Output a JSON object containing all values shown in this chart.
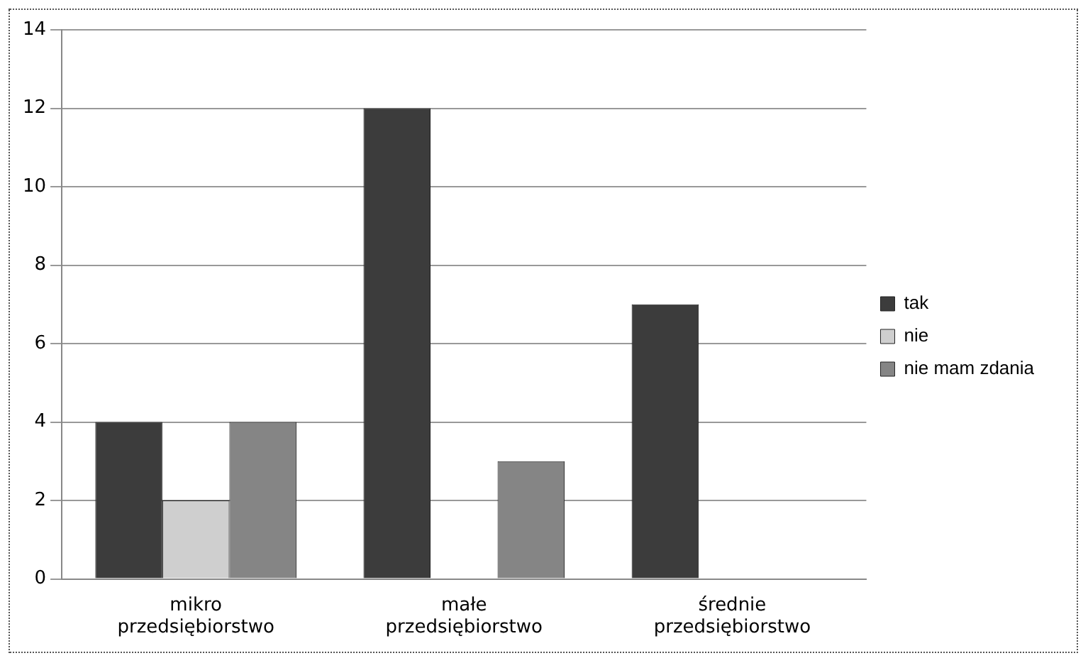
{
  "chart_data": {
    "type": "bar",
    "categories": [
      "mikro przedsiębiorstwo",
      "małe przedsiębiorstwo",
      "średnie przedsiębiorstwo"
    ],
    "series": [
      {
        "name": "tak",
        "color": "#3c3c3c",
        "values": [
          4,
          12,
          7
        ]
      },
      {
        "name": "nie",
        "color": "#cfcfcf",
        "values": [
          2,
          0,
          0
        ]
      },
      {
        "name": "nie mam zdania",
        "color": "#858585",
        "values": [
          4,
          3,
          0
        ]
      }
    ],
    "ylim": [
      0,
      14
    ],
    "yticks": [
      0,
      2,
      4,
      6,
      8,
      10,
      12,
      14
    ],
    "grid": "y",
    "legend": "right"
  }
}
